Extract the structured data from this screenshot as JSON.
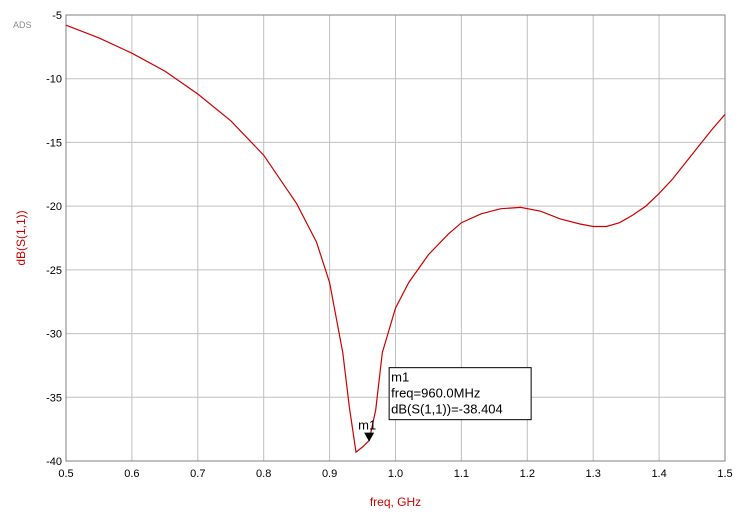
{
  "chart_data": {
    "type": "line",
    "brand": "ADS",
    "xlabel": "freq, GHz",
    "ylabel": "dB(S(1,1))",
    "xlim": [
      0.5,
      1.5
    ],
    "ylim": [
      -40,
      -5
    ],
    "x_ticks": [
      "0.5",
      "0.6",
      "0.7",
      "0.8",
      "0.9",
      "1.0",
      "1.1",
      "1.2",
      "1.3",
      "1.4",
      "1.5"
    ],
    "y_ticks": [
      "-5",
      "-10",
      "-15",
      "-20",
      "-25",
      "-30",
      "-35",
      "-40"
    ],
    "grid": true,
    "colors": {
      "trace": "#cc0000",
      "axis_label": "#cc0000",
      "grid": "#c0c0c0",
      "frame": "#808080"
    },
    "series": [
      {
        "x": [
          0.5,
          0.55,
          0.6,
          0.65,
          0.7,
          0.75,
          0.8,
          0.85,
          0.88,
          0.9,
          0.92,
          0.93,
          0.94,
          0.95,
          0.96,
          0.97,
          0.98,
          1.0,
          1.02,
          1.05,
          1.08,
          1.1,
          1.13,
          1.16,
          1.19,
          1.22,
          1.25,
          1.28,
          1.3,
          1.32,
          1.34,
          1.36,
          1.38,
          1.4,
          1.42,
          1.44,
          1.46,
          1.48,
          1.5
        ],
        "y": [
          -5.8,
          -6.8,
          -8.0,
          -9.4,
          -11.2,
          -13.3,
          -16.0,
          -19.8,
          -22.8,
          -26.0,
          -31.5,
          -35.8,
          -39.3,
          -38.9,
          -38.4,
          -36.0,
          -31.5,
          -28.0,
          -26.0,
          -23.8,
          -22.2,
          -21.3,
          -20.6,
          -20.2,
          -20.1,
          -20.4,
          -21.0,
          -21.4,
          -21.6,
          -21.6,
          -21.3,
          -20.7,
          -20.0,
          -19.0,
          -17.9,
          -16.6,
          -15.3,
          -14.0,
          -12.8
        ]
      }
    ],
    "marker": {
      "name": "m1",
      "x": 0.96,
      "y": -38.404,
      "lines": [
        "m1",
        "freq=960.0MHz",
        "dB(S(1,1))=-38.404"
      ]
    }
  }
}
